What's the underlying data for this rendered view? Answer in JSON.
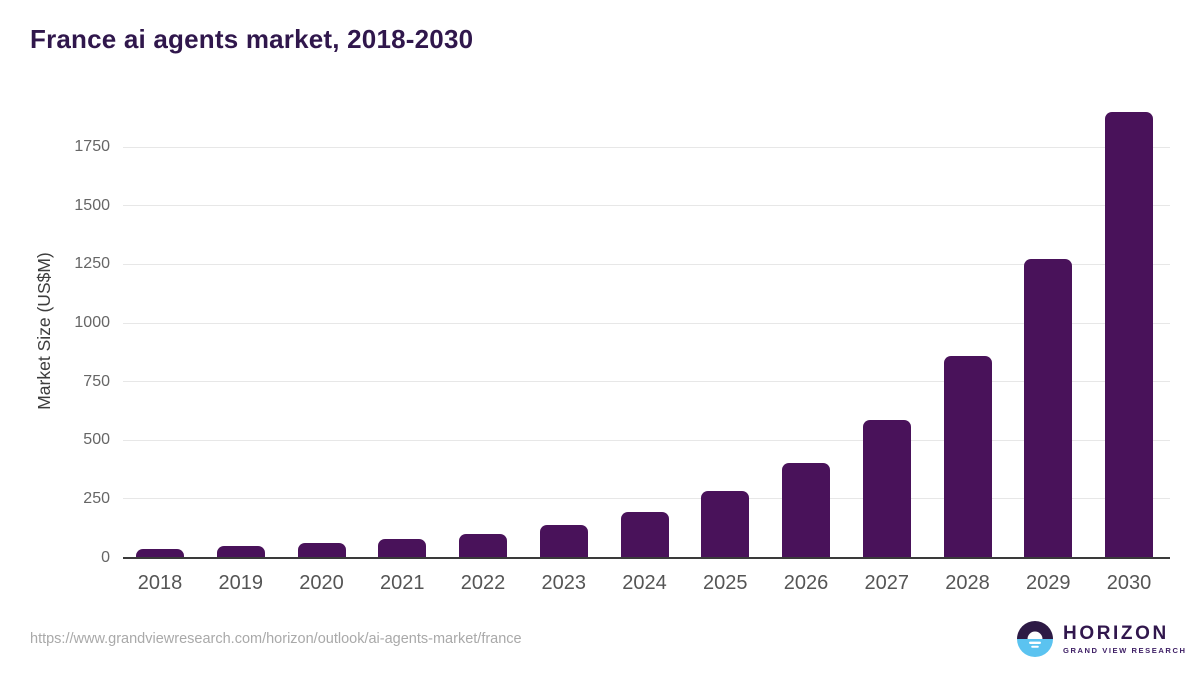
{
  "page": {
    "source_url": "https://www.grandviewresearch.com/horizon/outlook/ai-agents-market/france"
  },
  "logo": {
    "name": "HORIZON",
    "subtitle": "GRAND VIEW RESEARCH",
    "mark_top_color": "#2d1a45",
    "mark_bottom_color": "#5bc3f0",
    "mark_sun_color": "#ffffff"
  },
  "chart_data": {
    "type": "bar",
    "title": "France ai agents market, 2018-2030",
    "categories": [
      "2018",
      "2019",
      "2020",
      "2021",
      "2022",
      "2023",
      "2024",
      "2025",
      "2026",
      "2027",
      "2028",
      "2029",
      "2030"
    ],
    "values": [
      36,
      47,
      61,
      80,
      101,
      137,
      192,
      282,
      405,
      585,
      860,
      1274,
      1902
    ],
    "xlabel": "",
    "ylabel": "Market Size (US$M)",
    "ylim": [
      0,
      1930
    ],
    "yticks": [
      0,
      250,
      500,
      750,
      1000,
      1250,
      1500,
      1750
    ],
    "grid": true,
    "legend": false,
    "bar_color": "#49125a"
  },
  "colors": {
    "title": "#30174c",
    "grid": "#e7e7e7",
    "axis": "#3a3a3a",
    "y_tick_label": "#666666",
    "x_tick_label": "#555555",
    "url": "#a9a9a9"
  }
}
